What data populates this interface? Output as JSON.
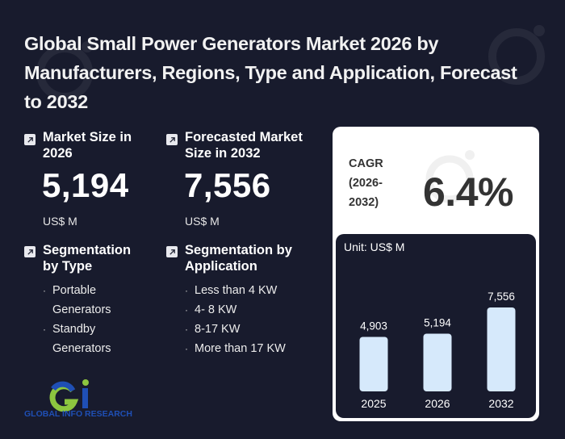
{
  "header": {
    "title": "Global Small Power Generators Market 2026 by Manufacturers, Regions, Type and Application, Forecast to 2032"
  },
  "market_size": {
    "label": "Market Size in 2026",
    "value": "5,194",
    "unit": "US$ M",
    "icon": "arrow-up-right-icon"
  },
  "forecast_size": {
    "label": "Forecasted Market Size in 2032",
    "value": "7,556",
    "unit": "US$ M",
    "icon": "arrow-up-right-icon"
  },
  "segmentation_type": {
    "label": "Segmentation by Type",
    "items": [
      "Portable Generators",
      "Standby Generators"
    ]
  },
  "segmentation_application": {
    "label": "Segmentation by Application",
    "items": [
      "Less than 4 KW",
      "4- 8 KW",
      "8-17 KW",
      "More than 17 KW"
    ]
  },
  "cagr": {
    "label": "CAGR (2026-2032)",
    "value": "6.4%"
  },
  "logo": {
    "text": "GLOBAL INFO RESEARCH",
    "colors": {
      "blue": "#1f4fb5",
      "green": "#8dc63f"
    }
  },
  "colors": {
    "background": "#181b2d",
    "bar_fill": "#d6e9fb",
    "card": "#ffffff"
  },
  "chart_data": {
    "type": "bar",
    "title": "",
    "unit_label": "Unit: US$ M",
    "categories": [
      "2025",
      "2026",
      "2032"
    ],
    "values": [
      4903,
      5194,
      7556
    ],
    "value_labels": [
      "4,903",
      "5,194",
      "7,556"
    ],
    "xlabel": "",
    "ylabel": "",
    "ylim": [
      0,
      7556
    ],
    "grid": false,
    "legend": "none"
  }
}
